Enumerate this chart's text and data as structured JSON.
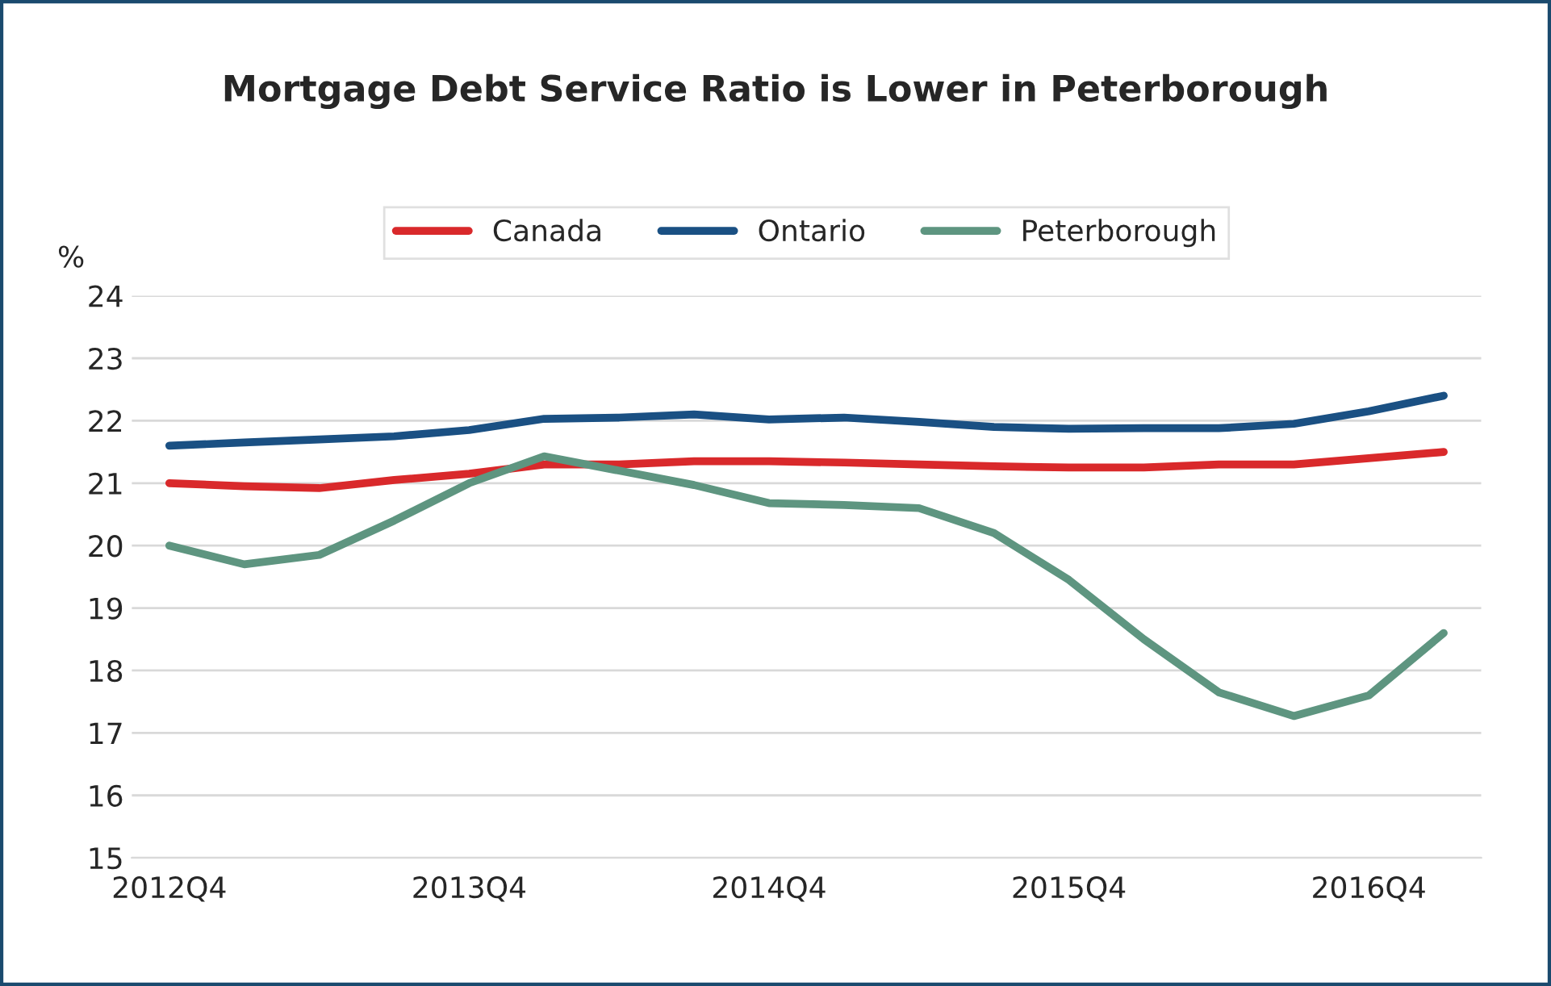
{
  "chart_data": {
    "type": "line",
    "title": "Mortgage Debt Service Ratio is Lower in Peterborough",
    "ylabel": "%",
    "categories": [
      "2012Q4",
      null,
      null,
      null,
      "2013Q4",
      null,
      null,
      null,
      "2014Q4",
      null,
      null,
      null,
      "2015Q4",
      null,
      null,
      null,
      "2016Q4",
      null
    ],
    "series": [
      {
        "name": "Canada",
        "color": "#d9292b",
        "values": [
          21.0,
          20.95,
          20.92,
          21.05,
          21.15,
          21.3,
          21.3,
          21.35,
          21.35,
          21.33,
          21.3,
          21.27,
          21.25,
          21.25,
          21.3,
          21.3,
          21.4,
          21.5
        ]
      },
      {
        "name": "Ontario",
        "color": "#1a5083",
        "values": [
          21.6,
          21.65,
          21.7,
          21.75,
          21.85,
          22.03,
          22.05,
          22.1,
          22.02,
          22.05,
          21.98,
          21.9,
          21.87,
          21.88,
          21.88,
          21.95,
          22.15,
          22.4
        ]
      },
      {
        "name": "Peterborough",
        "color": "#5e9580",
        "values": [
          20.0,
          19.7,
          19.85,
          20.4,
          21.0,
          21.43,
          21.2,
          20.97,
          20.68,
          20.65,
          20.6,
          20.2,
          19.45,
          18.5,
          17.65,
          17.27,
          17.6,
          18.6
        ]
      }
    ],
    "ylim": [
      15,
      24
    ],
    "yticks": [
      15,
      16,
      17,
      18,
      19,
      20,
      21,
      22,
      23,
      24
    ],
    "grid": "y",
    "legend": "top",
    "marker": "none",
    "line_style": "solid"
  }
}
